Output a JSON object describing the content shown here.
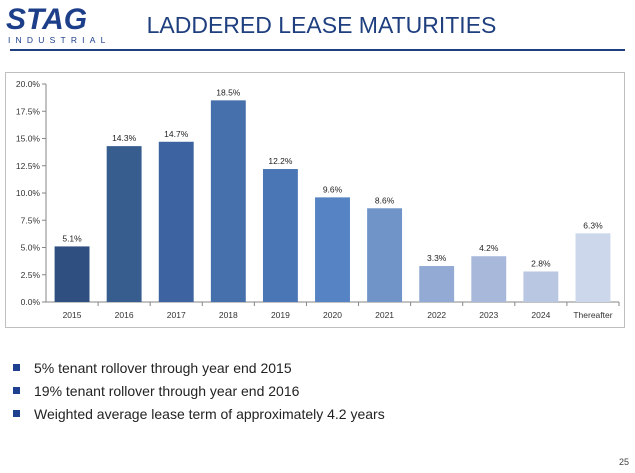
{
  "logo": {
    "word": "STAG",
    "sub": "INDUSTRIAL"
  },
  "title": "LADDERED LEASE MATURITIES",
  "chart_data": {
    "type": "bar",
    "categories": [
      "2015",
      "2016",
      "2017",
      "2018",
      "2019",
      "2020",
      "2021",
      "2022",
      "2023",
      "2024",
      "Thereafter"
    ],
    "values": [
      5.1,
      14.3,
      14.7,
      18.5,
      12.2,
      9.6,
      8.6,
      3.3,
      4.2,
      2.8,
      6.3
    ],
    "data_labels": [
      "5.1%",
      "14.3%",
      "14.7%",
      "18.5%",
      "12.2%",
      "9.6%",
      "8.6%",
      "3.3%",
      "4.2%",
      "2.8%",
      "6.3%"
    ],
    "bar_colors": [
      "#2e4f80",
      "#375d8f",
      "#3d64a0",
      "#4670ab",
      "#4a76b5",
      "#5583c3",
      "#7194c8",
      "#93abd4",
      "#a7b8da",
      "#b9c7e2",
      "#ccd7eb"
    ],
    "ylim": [
      0,
      20
    ],
    "yticks": [
      "0.0%",
      "2.5%",
      "5.0%",
      "7.5%",
      "10.0%",
      "12.5%",
      "15.0%",
      "17.5%",
      "20.0%"
    ],
    "title": "",
    "xlabel": "",
    "ylabel": "",
    "grid": false
  },
  "bullets": [
    "5% tenant rollover through year end 2015",
    "19% tenant rollover through year end 2016",
    "Weighted average lease term of approximately 4.2 years"
  ],
  "page_number": "25"
}
